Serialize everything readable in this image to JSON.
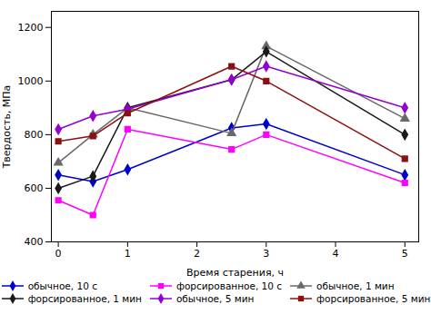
{
  "chart_data": {
    "type": "line",
    "xlabel": "Время старения, ч",
    "ylabel": "Твердость, МПа",
    "x": [
      0,
      0.5,
      1,
      2.5,
      3,
      5
    ],
    "xlim": [
      -0.1,
      5.2
    ],
    "ylim": [
      400,
      1260
    ],
    "xticks": [
      0,
      1,
      2,
      3,
      4,
      5
    ],
    "yticks": [
      400,
      600,
      800,
      1000,
      1200
    ],
    "grid": false,
    "legend": "bottom",
    "series": [
      {
        "name": "обычное, 10 с",
        "color": "#0000CD",
        "marker": "diamond",
        "line_style": "solid",
        "values": [
          650,
          625,
          670,
          825,
          840,
          650
        ]
      },
      {
        "name": "форсированное, 10 с",
        "color": "#FF00FF",
        "marker": "square",
        "line_style": "solid",
        "values": [
          555,
          500,
          820,
          745,
          800,
          620
        ]
      },
      {
        "name": "обычное, 1 мин",
        "color": "#696969",
        "marker": "triangle",
        "line_style": "solid",
        "values": [
          695,
          800,
          900,
          805,
          1130,
          860
        ]
      },
      {
        "name": "форсированное, 1 мин",
        "color": "#1a1a1a",
        "marker": "diamond",
        "line_style": "solid",
        "values": [
          600,
          645,
          900,
          1005,
          1110,
          800
        ]
      },
      {
        "name": "обычное, 5 мин",
        "color": "#9400D3",
        "marker": "diamond",
        "line_style": "solid",
        "values": [
          820,
          870,
          895,
          1005,
          1055,
          900
        ]
      },
      {
        "name": "форсированное, 5 мин",
        "color": "#8B1010",
        "marker": "square",
        "line_style": "solid",
        "values": [
          775,
          795,
          880,
          1055,
          1000,
          710
        ]
      }
    ]
  }
}
